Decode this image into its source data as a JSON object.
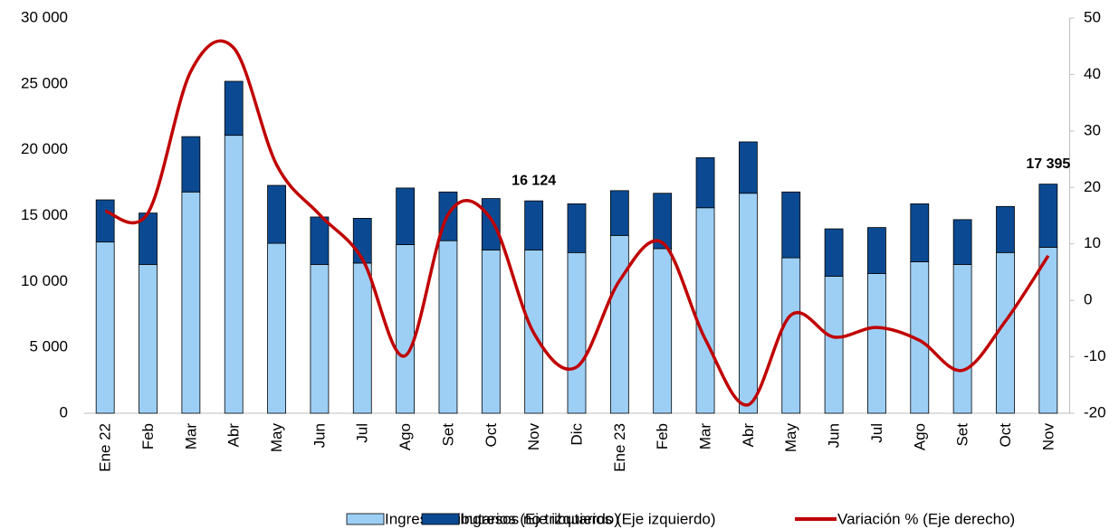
{
  "chart_data": {
    "type": "bar",
    "stacked": true,
    "categories": [
      "Ene 22",
      "Feb",
      "Mar",
      "Abr",
      "May",
      "Jun",
      "Jul",
      "Ago",
      "Set",
      "Oct",
      "Nov",
      "Dic",
      "Ene 23",
      "Feb",
      "Mar",
      "Abr",
      "May",
      "Jun",
      "Jul",
      "Ago",
      "Set",
      "Oct",
      "Nov"
    ],
    "series": [
      {
        "name": "Ingresos tributarios (Eje izquierdo)",
        "color": "#9dcff5",
        "type": "bar",
        "values": [
          13000,
          11300,
          16800,
          21100,
          12900,
          11300,
          11400,
          12800,
          13100,
          12400,
          12400,
          12200,
          13500,
          12500,
          15600,
          16700,
          11800,
          10400,
          10600,
          11500,
          11300,
          12200,
          12600
        ]
      },
      {
        "name": "Ingresos no tributarios (Eje izquierdo)",
        "color": "#0b4a92",
        "type": "bar",
        "values": [
          3200,
          3900,
          4200,
          4100,
          4400,
          3600,
          3400,
          4300,
          3700,
          3900,
          3724,
          3700,
          3400,
          4200,
          3800,
          3900,
          5000,
          3600,
          3500,
          4400,
          3400,
          3500,
          4795
        ]
      },
      {
        "name": "Variación % (Eje derecho)",
        "color": "#c00000",
        "type": "line",
        "axis": "y2",
        "values": [
          15.8,
          15.5,
          40.6,
          44.7,
          24,
          15.2,
          7.3,
          -9.8,
          15.2,
          14.4,
          -5.8,
          -11.8,
          3.5,
          10.2,
          -6.9,
          -18.5,
          -2.6,
          -6.5,
          -4.8,
          -7.1,
          -12.4,
          -3.7,
          7.9
        ]
      }
    ],
    "annotations": [
      {
        "text": "16 124",
        "value": 16124
      },
      {
        "text": "17 395",
        "value": 17395
      }
    ],
    "ylim": [
      0,
      30000
    ],
    "yticks": [
      0,
      {
        "value": 5000,
        "label": "5 000"
      },
      {
        "value": 10000,
        "label": "10 000"
      },
      {
        "value": 15000,
        "label": "15 000"
      },
      {
        "value": 20000,
        "label": "20 000"
      },
      {
        "value": 25000,
        "label": "25 000"
      },
      {
        "value": 30000,
        "label": "30 000"
      }
    ],
    "y2lim": [
      -20,
      50
    ],
    "y2ticks": [
      -20,
      -10,
      0,
      10,
      20,
      30,
      40,
      50
    ],
    "grid": false,
    "legend": "bottom"
  }
}
